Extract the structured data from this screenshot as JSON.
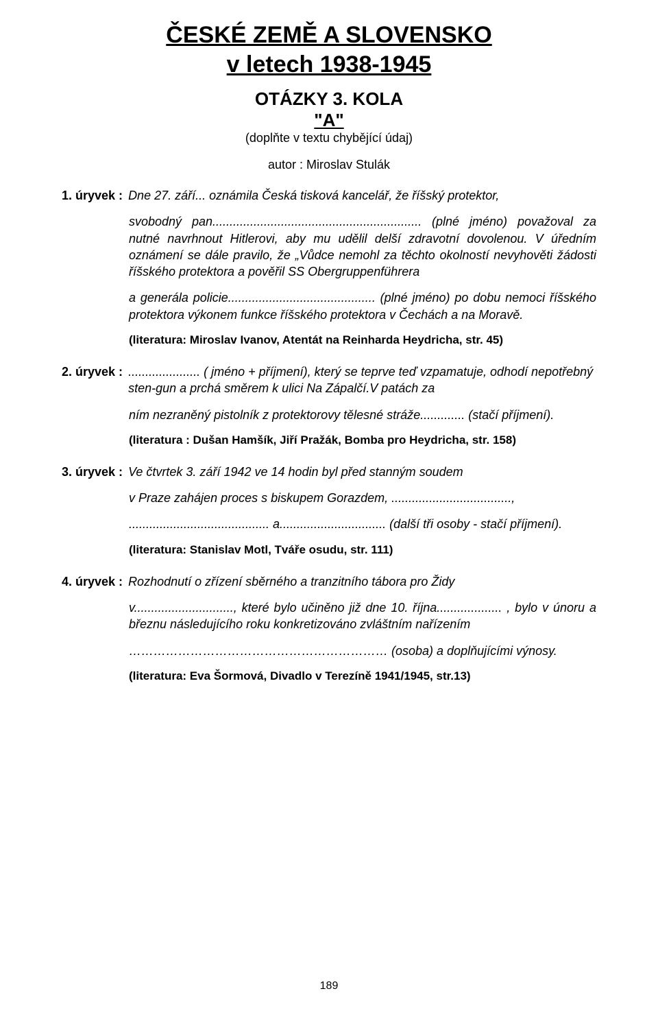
{
  "meta": {
    "page_number": "189",
    "background": "#ffffff",
    "text_color": "#000000"
  },
  "title": {
    "line1": "ČESKÉ ZEMĚ A SLOVENSKO",
    "line2": "v letech 1938-1945",
    "round": "OTÁZKY 3. KOLA",
    "section_letter": "\"A\"",
    "instruction": "(doplňte v textu chybějící údaj)",
    "author": "autor : Miroslav Stulák"
  },
  "excerpts": {
    "e1": {
      "label": "1. úryvek :",
      "lead": "Dne 27. září... oznámila Česká tisková kancelář, že říšský protektor,",
      "p1": "svobodný pan............................................................. (plné jméno) považoval za nutné navrhnout Hitlerovi, aby mu udělil delší zdravotní dovolenou. V úředním oznámení se dále pravilo, že „Vůdce nemohl za těchto okolností nevyhověti žádosti říšského protektora a pověřil SS Obergruppenführera",
      "p2": "a generála policie........................................... (plné jméno) po dobu nemoci říšského protektora výkonem funkce říšského protektora v Čechách a na Moravě.",
      "lit": "(literatura: Miroslav Ivanov, Atentát na Reinharda Heydricha, str. 45)"
    },
    "e2": {
      "label": "2. úryvek :",
      "lead": "..................... ( jméno + příjmení), který se teprve teď vzpamatuje, odhodí nepotřebný sten-gun a prchá směrem k ulici Na Zápalčí.V patách za",
      "p1": "ním nezraněný pistolník z protektorovy tělesné stráže............. (stačí příjmení).",
      "lit": "(literatura : Dušan Hamšík, Jiří Pražák, Bomba pro Heydricha, str. 158)"
    },
    "e3": {
      "label": "3. úryvek :",
      "lead": "Ve čtvrtek 3. září 1942 ve 14 hodin byl před stanným soudem",
      "p1": "v Praze zahájen proces s biskupem Gorazdem, ...................................,",
      "p2": "......................................... a............................... (další tři osoby - stačí příjmení).",
      "lit": "(literatura: Stanislav Motl, Tváře osudu, str. 111)"
    },
    "e4": {
      "label": "4. úryvek :",
      "lead": "Rozhodnutí o zřízení sběrného a tranzitního tábora pro Židy",
      "p1": "v............................., které bylo učiněno již dne 10. října................... , bylo v únoru a březnu následujícího roku konkretizováno zvláštním nařízením",
      "p2": "……………………………………………………… (osoba) a doplňujícími výnosy.",
      "lit": "(literatura: Eva Šormová, Divadlo v Terezíně 1941/1945, str.13)"
    }
  }
}
